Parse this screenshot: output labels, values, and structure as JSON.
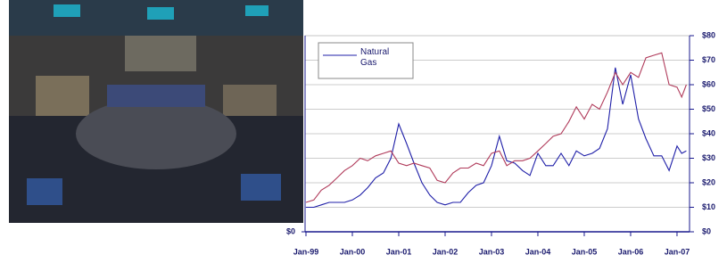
{
  "chart_data": {
    "type": "line",
    "x": [
      1999,
      1999.17,
      1999.33,
      1999.5,
      1999.67,
      1999.83,
      2000,
      2000.17,
      2000.33,
      2000.5,
      2000.67,
      2000.83,
      2001,
      2001.17,
      2001.33,
      2001.5,
      2001.67,
      2001.83,
      2002,
      2002.17,
      2002.33,
      2002.5,
      2002.67,
      2002.83,
      2003,
      2003.17,
      2003.33,
      2003.5,
      2003.67,
      2003.83,
      2004,
      2004.17,
      2004.33,
      2004.5,
      2004.67,
      2004.83,
      2005,
      2005.17,
      2005.33,
      2005.5,
      2005.67,
      2005.83,
      2006,
      2006.17,
      2006.33,
      2006.5,
      2006.67,
      2006.83,
      2007,
      2007.1,
      2007.2
    ],
    "series": [
      {
        "name": "Natural Gas",
        "color": "#1f1fa8",
        "axis": "y2",
        "values": [
          10,
          10,
          11,
          12,
          12,
          12,
          13,
          15,
          18,
          22,
          24,
          30,
          44,
          36,
          28,
          20,
          15,
          12,
          11,
          12,
          12,
          16,
          19,
          20,
          27,
          39,
          29,
          28,
          25,
          23,
          32,
          27,
          27,
          32,
          27,
          33,
          31,
          32,
          34,
          42,
          67,
          52,
          64,
          46,
          38,
          31,
          31,
          25,
          35,
          32,
          33
        ]
      },
      {
        "color": "#b03a5a",
        "axis": "y2",
        "values": [
          12,
          13,
          17,
          19,
          22,
          25,
          27,
          30,
          29,
          31,
          32,
          33,
          28,
          27,
          28,
          27,
          26,
          21,
          20,
          24,
          26,
          26,
          28,
          27,
          32,
          33,
          27,
          29,
          29,
          30,
          33,
          36,
          39,
          40,
          45,
          51,
          46,
          52,
          50,
          57,
          65,
          60,
          65,
          63,
          71,
          72,
          73,
          60,
          59,
          55,
          60
        ]
      }
    ],
    "xlim": [
      1999,
      2007.27
    ],
    "xticks": [
      {
        "value": 1999,
        "label": "Jan-99"
      },
      {
        "value": 2000,
        "label": "Jan-00"
      },
      {
        "value": 2001,
        "label": "Jan-01"
      },
      {
        "value": 2002,
        "label": "Jan-02"
      },
      {
        "value": 2003,
        "label": "Jan-03"
      },
      {
        "value": 2004,
        "label": "Jan-04"
      },
      {
        "value": 2005,
        "label": "Jan-05"
      },
      {
        "value": 2006,
        "label": "Jan-06"
      },
      {
        "value": 2007,
        "label": "Jan-07"
      }
    ],
    "ylim": [
      0,
      80
    ],
    "yticks": [
      {
        "value": 0,
        "label": "$0"
      }
    ],
    "y2lim": [
      0,
      80
    ],
    "y2ticks": [
      {
        "value": 0,
        "label": "$0"
      },
      {
        "value": 10,
        "label": "$10"
      },
      {
        "value": 20,
        "label": "$20"
      },
      {
        "value": 30,
        "label": "$30"
      },
      {
        "value": 40,
        "label": "$40"
      },
      {
        "value": 50,
        "label": "$50"
      },
      {
        "value": 60,
        "label": "$60"
      },
      {
        "value": 70,
        "label": "$70"
      },
      {
        "value": 80,
        "label": "$80"
      }
    ],
    "grid": true,
    "legend": "upper left"
  }
}
